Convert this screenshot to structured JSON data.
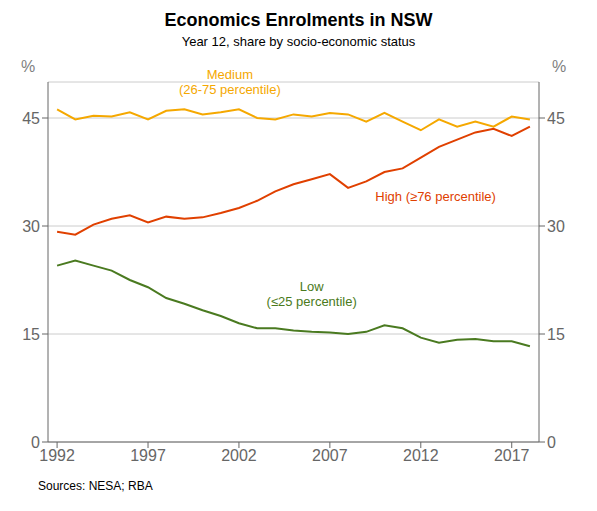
{
  "chart_data": {
    "type": "line",
    "title": "Economics Enrolments in NSW",
    "subtitle": "Year 12, share by socio-economic status",
    "source": "Sources: NESA; RBA",
    "ylabel": "%",
    "y2label": "%",
    "x": [
      1992,
      1993,
      1994,
      1995,
      1996,
      1997,
      1998,
      1999,
      2000,
      2001,
      2002,
      2003,
      2004,
      2005,
      2006,
      2007,
      2008,
      2009,
      2010,
      2011,
      2012,
      2013,
      2014,
      2015,
      2016,
      2017,
      2018
    ],
    "series": [
      {
        "color": "#F5A800",
        "values": [
          46.2,
          44.8,
          45.3,
          45.2,
          45.8,
          44.8,
          46.0,
          46.2,
          45.5,
          45.8,
          46.2,
          45.0,
          44.8,
          45.5,
          45.2,
          45.7,
          45.5,
          44.5,
          45.7,
          44.5,
          43.3,
          44.8,
          43.8,
          44.5,
          43.8,
          45.2,
          44.8
        ]
      },
      {
        "color": "#E04000",
        "values": [
          29.2,
          28.8,
          30.2,
          31.0,
          31.5,
          30.5,
          31.3,
          31.0,
          31.2,
          31.8,
          32.5,
          33.5,
          34.8,
          35.8,
          36.5,
          37.2,
          35.3,
          36.2,
          37.5,
          38.0,
          39.5,
          41.0,
          42.0,
          43.0,
          43.5,
          42.5,
          43.8
        ]
      },
      {
        "color": "#4A7A20",
        "values": [
          24.5,
          25.2,
          24.5,
          23.8,
          22.5,
          21.5,
          20.0,
          19.2,
          18.3,
          17.5,
          16.5,
          15.8,
          15.8,
          15.5,
          15.3,
          15.2,
          15.0,
          15.3,
          16.2,
          15.8,
          14.5,
          13.8,
          14.2,
          14.3,
          14.0,
          14.0,
          13.3
        ]
      }
    ],
    "xlim": [
      1991.5,
      2018.5
    ],
    "xticks": [
      1992,
      1997,
      2002,
      2007,
      2012,
      2017
    ],
    "ylim": [
      0,
      50
    ],
    "yticks": [
      0,
      15,
      30,
      45
    ],
    "y2lim": [
      0,
      50
    ],
    "y2ticks": [
      0,
      15,
      30,
      45
    ],
    "grid": true,
    "annotations": [
      {
        "text": "Medium\n(26-75 percentile)",
        "x": 2001.5,
        "y": 47.8,
        "color": "#F5A800"
      },
      {
        "text": "High (≥76 percentile)",
        "x": 2009.5,
        "y": 34.0,
        "color": "#E04000"
      },
      {
        "text": "Low\n(≤25 percentile)",
        "x": 2006.0,
        "y": 20.5,
        "color": "#4A7A20"
      }
    ]
  }
}
